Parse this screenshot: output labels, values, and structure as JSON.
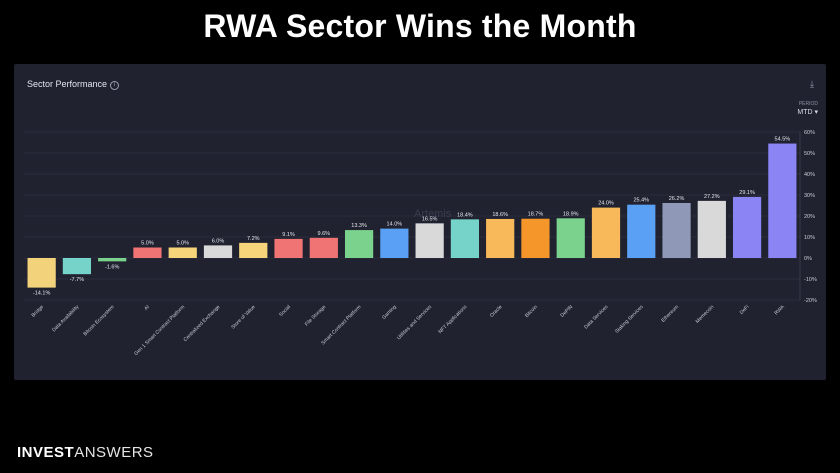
{
  "slide": {
    "title": "RWA Sector Wins the Month"
  },
  "panel": {
    "title": "Sector Performance",
    "info_icon": "i",
    "download_icon": "⤓",
    "period_label": "PERIOD",
    "period_value": "MTD ▾"
  },
  "footer": {
    "brand_bold": "INVEST",
    "brand_light": "ANSWERS"
  },
  "watermark": "Artemis",
  "chart_data": {
    "type": "bar",
    "title": "Sector Performance",
    "categories": [
      "Bridge",
      "Data Availability",
      "Bitcoin Ecosystem",
      "AI",
      "Gen 1 Smart Contract Platform",
      "Centralized Exchange",
      "Store of Value",
      "Social",
      "File Storage",
      "Smart Contract Platform",
      "Gaming",
      "Utilities and Services",
      "NFT Applications",
      "Oracle",
      "Bitcoin",
      "DePIN",
      "Data Services",
      "Staking Services",
      "Ethereum",
      "Memecoin",
      "DeFi",
      "RWA"
    ],
    "values": [
      -14.1,
      -7.7,
      -1.6,
      5.0,
      5.0,
      6.0,
      7.2,
      9.1,
      9.6,
      13.3,
      14.0,
      16.5,
      18.4,
      18.6,
      18.7,
      18.9,
      24.0,
      25.4,
      26.2,
      27.2,
      29.1,
      54.5
    ],
    "labels": [
      "-14.1%",
      "-7.7%",
      "-1.6%",
      "5.0%",
      "5.0%",
      "6.0%",
      "7.2%",
      "9.1%",
      "9.6%",
      "13.3%",
      "14.0%",
      "16.5%",
      "18.4%",
      "18.6%",
      "18.7%",
      "18.9%",
      "24.0%",
      "25.4%",
      "26.2%",
      "27.2%",
      "29.1%",
      "54.5%"
    ],
    "colors": [
      "#f2d27a",
      "#76d3c9",
      "#7ad28c",
      "#f07474",
      "#f6d57a",
      "#d9d9d9",
      "#f6d57a",
      "#f07474",
      "#f07474",
      "#7ad28c",
      "#5aa0f4",
      "#d9d9d9",
      "#76d3c9",
      "#f8b95a",
      "#f4962a",
      "#7ad28c",
      "#f8b95a",
      "#5aa0f4",
      "#8f98b6",
      "#d9d9d9",
      "#8a84f4",
      "#8a84f4"
    ],
    "ylim": [
      -20,
      60
    ],
    "yticks": [
      -20,
      -10,
      0,
      10,
      20,
      30,
      40,
      50,
      60
    ],
    "ytick_labels": [
      "-20%",
      "-10%",
      "0%",
      "10%",
      "20%",
      "30%",
      "40%",
      "50%",
      "60%"
    ],
    "grid": true,
    "y_axis_side": "right"
  }
}
